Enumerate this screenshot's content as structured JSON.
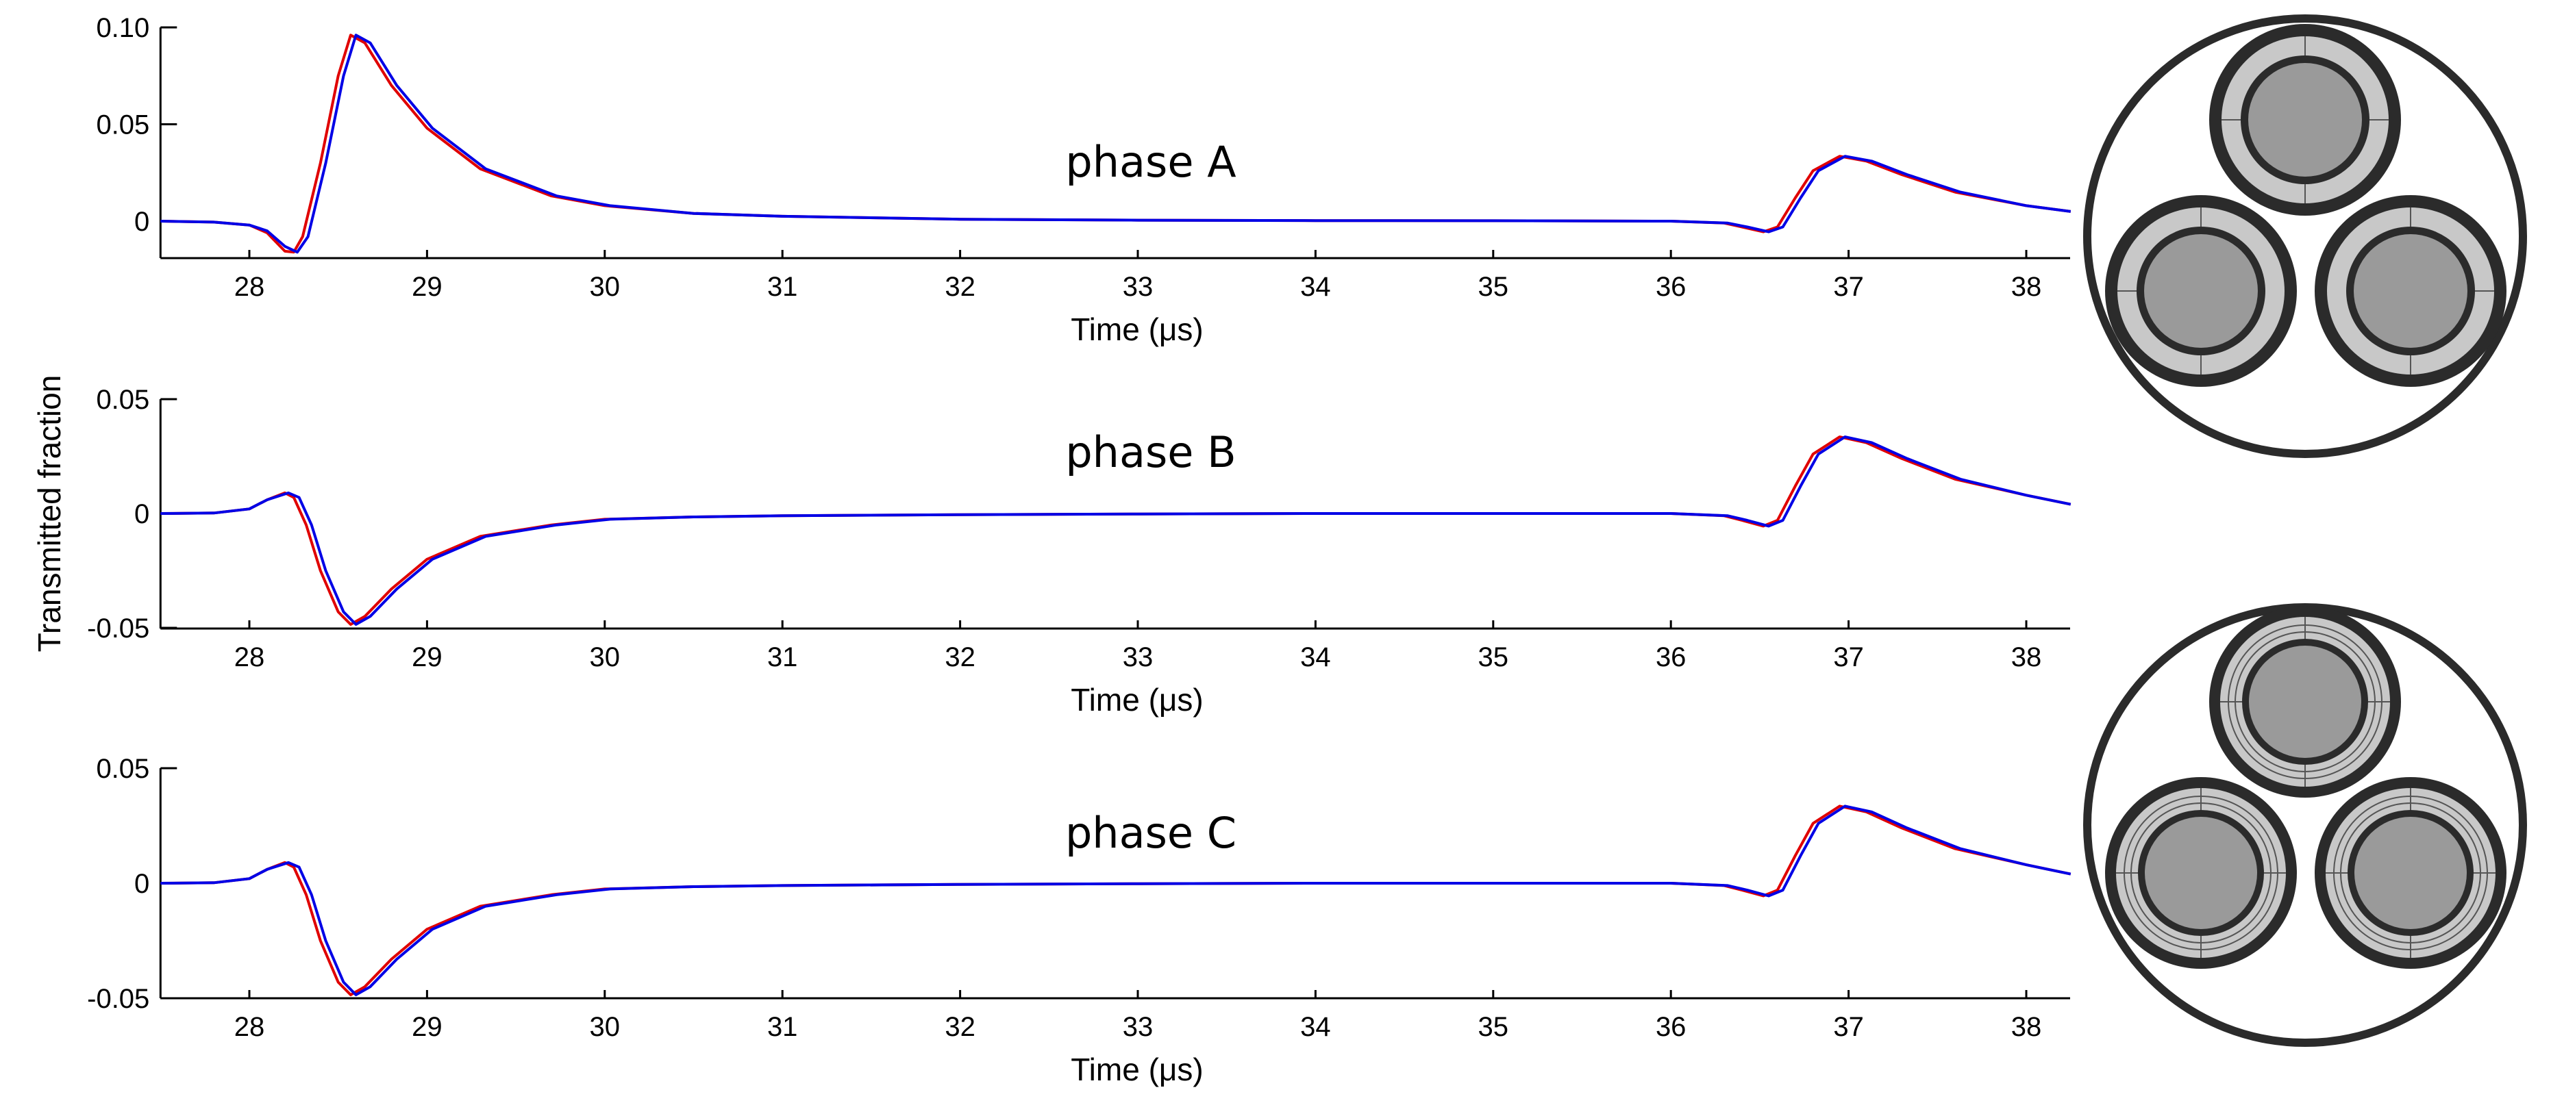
{
  "figure": {
    "ylabel": "Transmitted fraction",
    "line_colors": {
      "red": "#e00000",
      "blue": "#0000e6"
    },
    "cable_colors": {
      "outline": "#2b2b2b",
      "insulation": "#c8c8c8",
      "conductor": "#9a9a9a"
    }
  },
  "chart_data": [
    {
      "type": "line",
      "title": "phase A",
      "xlabel": "Time (μs)",
      "ylabel": "Transmitted fraction",
      "xlim": [
        27.5,
        38.25
      ],
      "ylim": [
        -0.02,
        0.1
      ],
      "xticks": [
        28,
        29,
        30,
        31,
        32,
        33,
        34,
        35,
        36,
        37,
        38
      ],
      "yticks": [
        -0.0,
        0.05,
        0.1
      ],
      "ytick_labels": [
        "0",
        "0.05",
        "0.10"
      ],
      "series": [
        {
          "name": "red",
          "color": "#e00000",
          "x": [
            27.5,
            27.8,
            28.0,
            28.1,
            28.2,
            28.25,
            28.3,
            28.4,
            28.5,
            28.57,
            28.65,
            28.8,
            29.0,
            29.3,
            29.7,
            30.0,
            30.5,
            31.0,
            32.0,
            33.0,
            34.0,
            35.0,
            36.0,
            36.3,
            36.4,
            36.52,
            36.6,
            36.7,
            36.8,
            36.95,
            37.1,
            37.3,
            37.6,
            38.0,
            38.25
          ],
          "y": [
            0.0,
            -0.0005,
            -0.002,
            -0.006,
            -0.0155,
            -0.016,
            -0.008,
            0.03,
            0.075,
            0.096,
            0.092,
            0.07,
            0.048,
            0.027,
            0.013,
            0.008,
            0.004,
            0.0025,
            0.001,
            0.0005,
            0.0003,
            0.0002,
            0.0,
            -0.001,
            -0.003,
            -0.0055,
            -0.003,
            0.012,
            0.026,
            0.0335,
            0.031,
            0.024,
            0.015,
            0.008,
            0.005
          ]
        },
        {
          "name": "blue",
          "color": "#0000e6",
          "x": [
            27.5,
            27.8,
            28.0,
            28.1,
            28.2,
            28.27,
            28.33,
            28.43,
            28.53,
            28.6,
            28.68,
            28.83,
            29.03,
            29.33,
            29.73,
            30.03,
            30.5,
            31.0,
            32.0,
            33.0,
            34.0,
            35.0,
            36.0,
            36.32,
            36.43,
            36.55,
            36.63,
            36.73,
            36.83,
            36.98,
            37.13,
            37.33,
            37.63,
            38.0,
            38.25
          ],
          "y": [
            0.0,
            -0.0005,
            -0.002,
            -0.005,
            -0.013,
            -0.016,
            -0.008,
            0.03,
            0.075,
            0.096,
            0.092,
            0.07,
            0.048,
            0.027,
            0.013,
            0.008,
            0.004,
            0.0025,
            0.001,
            0.0005,
            0.0003,
            0.0002,
            0.0,
            -0.001,
            -0.003,
            -0.0055,
            -0.003,
            0.012,
            0.026,
            0.0335,
            0.031,
            0.024,
            0.015,
            0.008,
            0.005
          ]
        }
      ]
    },
    {
      "type": "line",
      "title": "phase B",
      "xlabel": "Time (μs)",
      "ylabel": "Transmitted fraction",
      "xlim": [
        27.5,
        38.25
      ],
      "ylim": [
        -0.05,
        0.05
      ],
      "xticks": [
        28,
        29,
        30,
        31,
        32,
        33,
        34,
        35,
        36,
        37,
        38
      ],
      "yticks": [
        -0.05,
        0.0,
        0.05
      ],
      "ytick_labels": [
        "-0.05",
        "0",
        "0.05"
      ],
      "series": [
        {
          "name": "red",
          "color": "#e00000",
          "x": [
            27.5,
            27.8,
            28.0,
            28.1,
            28.2,
            28.25,
            28.32,
            28.4,
            28.5,
            28.57,
            28.65,
            28.8,
            29.0,
            29.3,
            29.7,
            30.0,
            30.5,
            31.0,
            32.0,
            33.0,
            34.0,
            35.0,
            36.0,
            36.3,
            36.4,
            36.52,
            36.6,
            36.7,
            36.8,
            36.95,
            37.1,
            37.3,
            37.6,
            38.0,
            38.25
          ],
          "y": [
            0.0,
            0.0002,
            0.002,
            0.006,
            0.009,
            0.007,
            -0.005,
            -0.025,
            -0.043,
            -0.0485,
            -0.045,
            -0.033,
            -0.02,
            -0.01,
            -0.005,
            -0.0025,
            -0.0015,
            -0.001,
            -0.0005,
            -0.0002,
            0.0,
            0.0,
            0.0,
            -0.001,
            -0.003,
            -0.0055,
            -0.003,
            0.012,
            0.026,
            0.0335,
            0.031,
            0.024,
            0.015,
            0.008,
            0.004
          ]
        },
        {
          "name": "blue",
          "color": "#0000e6",
          "x": [
            27.5,
            27.8,
            28.0,
            28.1,
            28.22,
            28.28,
            28.35,
            28.43,
            28.53,
            28.6,
            28.68,
            28.83,
            29.03,
            29.33,
            29.73,
            30.03,
            30.5,
            31.0,
            32.0,
            33.0,
            34.0,
            35.0,
            36.0,
            36.32,
            36.43,
            36.55,
            36.63,
            36.73,
            36.83,
            36.98,
            37.13,
            37.33,
            37.63,
            38.0,
            38.25
          ],
          "y": [
            0.0,
            0.0002,
            0.002,
            0.006,
            0.009,
            0.007,
            -0.005,
            -0.025,
            -0.043,
            -0.0485,
            -0.045,
            -0.033,
            -0.02,
            -0.01,
            -0.005,
            -0.0025,
            -0.0015,
            -0.001,
            -0.0005,
            -0.0002,
            0.0,
            0.0,
            0.0,
            -0.001,
            -0.003,
            -0.0055,
            -0.003,
            0.012,
            0.026,
            0.0335,
            0.031,
            0.024,
            0.015,
            0.008,
            0.004
          ]
        }
      ]
    },
    {
      "type": "line",
      "title": "phase C",
      "xlabel": "Time (μs)",
      "ylabel": "Transmitted fraction",
      "xlim": [
        27.5,
        38.25
      ],
      "ylim": [
        -0.05,
        0.05
      ],
      "xticks": [
        28,
        29,
        30,
        31,
        32,
        33,
        34,
        35,
        36,
        37,
        38
      ],
      "yticks": [
        -0.05,
        0.0,
        0.05
      ],
      "ytick_labels": [
        "-0.05",
        "0",
        "0.05"
      ],
      "series": [
        {
          "name": "red",
          "color": "#e00000",
          "x": [
            27.5,
            27.8,
            28.0,
            28.1,
            28.2,
            28.25,
            28.32,
            28.4,
            28.5,
            28.57,
            28.65,
            28.8,
            29.0,
            29.3,
            29.7,
            30.0,
            30.5,
            31.0,
            32.0,
            33.0,
            34.0,
            35.0,
            36.0,
            36.3,
            36.4,
            36.52,
            36.6,
            36.7,
            36.8,
            36.95,
            37.1,
            37.3,
            37.6,
            38.0,
            38.25
          ],
          "y": [
            0.0,
            0.0002,
            0.002,
            0.006,
            0.009,
            0.007,
            -0.005,
            -0.025,
            -0.043,
            -0.0485,
            -0.045,
            -0.033,
            -0.02,
            -0.01,
            -0.005,
            -0.0025,
            -0.0015,
            -0.001,
            -0.0005,
            -0.0002,
            0.0,
            0.0,
            0.0,
            -0.001,
            -0.003,
            -0.0055,
            -0.003,
            0.012,
            0.026,
            0.0335,
            0.031,
            0.024,
            0.015,
            0.008,
            0.004
          ]
        },
        {
          "name": "blue",
          "color": "#0000e6",
          "x": [
            27.5,
            27.8,
            28.0,
            28.1,
            28.22,
            28.28,
            28.35,
            28.43,
            28.53,
            28.6,
            28.68,
            28.83,
            29.03,
            29.33,
            29.73,
            30.03,
            30.5,
            31.0,
            32.0,
            33.0,
            34.0,
            35.0,
            36.0,
            36.32,
            36.43,
            36.55,
            36.63,
            36.73,
            36.83,
            36.98,
            37.13,
            37.33,
            37.63,
            38.0,
            38.25
          ],
          "y": [
            0.0,
            0.0002,
            0.002,
            0.006,
            0.009,
            0.007,
            -0.005,
            -0.025,
            -0.043,
            -0.0485,
            -0.045,
            -0.033,
            -0.02,
            -0.01,
            -0.005,
            -0.0025,
            -0.0015,
            -0.001,
            -0.0005,
            -0.0002,
            0.0,
            0.0,
            0.0,
            -0.001,
            -0.003,
            -0.0055,
            -0.003,
            0.012,
            0.026,
            0.0335,
            0.031,
            0.024,
            0.015,
            0.008,
            0.004
          ]
        }
      ]
    }
  ]
}
